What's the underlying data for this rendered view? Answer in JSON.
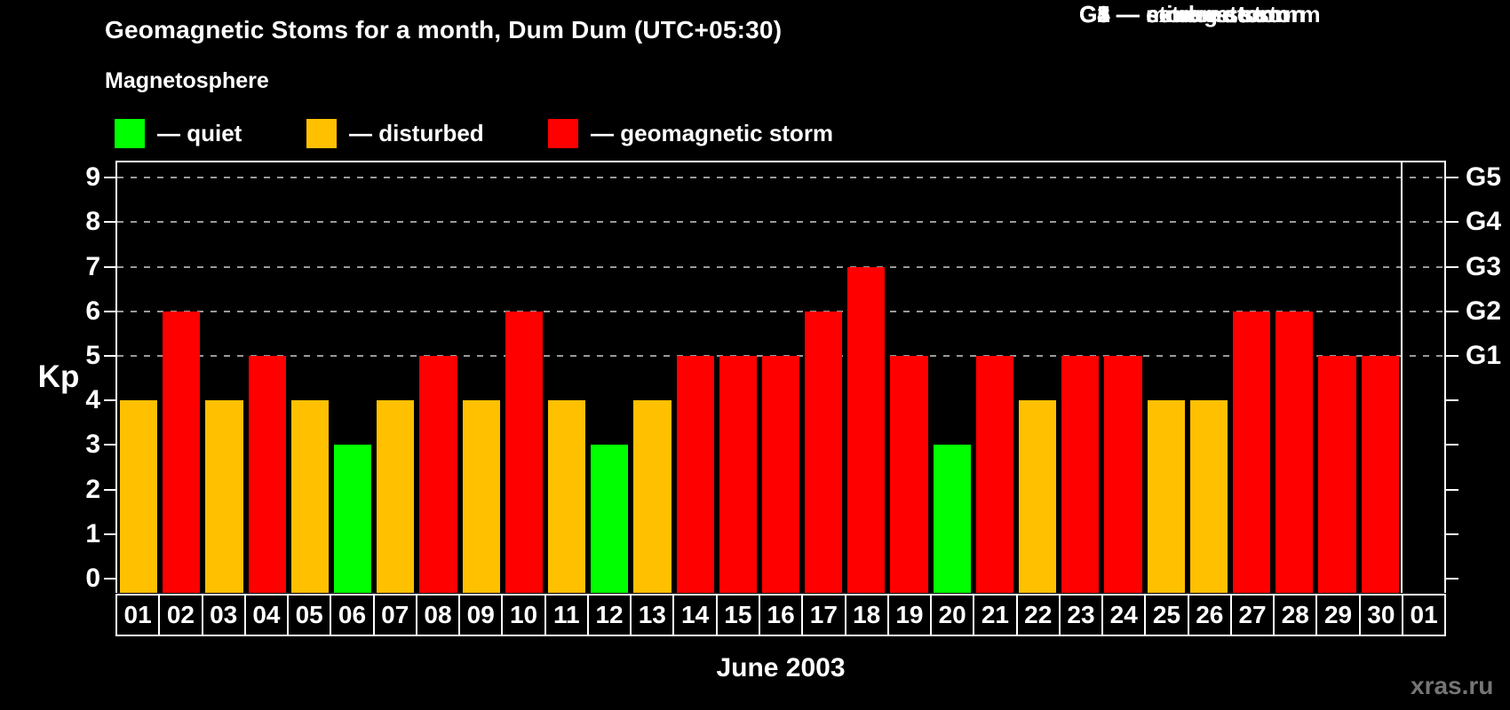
{
  "chart_data": {
    "type": "bar",
    "title": "Geomagnetic Stoms for a month, Dum Dum (UTC+05:30)",
    "subtitle": "Magnetosphere",
    "xlabel": "June 2003",
    "ylabel": "Kp",
    "ylim": [
      0,
      9
    ],
    "grid": "dashed horizontal at Kp 5-9",
    "gridlines_at": [
      5,
      6,
      7,
      8,
      9
    ],
    "left_ticks": [
      0,
      1,
      2,
      3,
      4,
      5,
      6,
      7,
      8,
      9
    ],
    "right_axis": {
      "labels": [
        "G1",
        "G2",
        "G3",
        "G4",
        "G5"
      ],
      "kp": [
        5,
        6,
        7,
        8,
        9
      ]
    },
    "month_boundary_index": 30,
    "days": [
      {
        "day": "01",
        "kp": 4,
        "state": "disturbed"
      },
      {
        "day": "02",
        "kp": 6,
        "state": "storm"
      },
      {
        "day": "03",
        "kp": 4,
        "state": "disturbed"
      },
      {
        "day": "04",
        "kp": 5,
        "state": "storm"
      },
      {
        "day": "05",
        "kp": 4,
        "state": "disturbed"
      },
      {
        "day": "06",
        "kp": 3,
        "state": "quiet"
      },
      {
        "day": "07",
        "kp": 4,
        "state": "disturbed"
      },
      {
        "day": "08",
        "kp": 5,
        "state": "storm"
      },
      {
        "day": "09",
        "kp": 4,
        "state": "disturbed"
      },
      {
        "day": "10",
        "kp": 6,
        "state": "storm"
      },
      {
        "day": "11",
        "kp": 4,
        "state": "disturbed"
      },
      {
        "day": "12",
        "kp": 3,
        "state": "quiet"
      },
      {
        "day": "13",
        "kp": 4,
        "state": "disturbed"
      },
      {
        "day": "14",
        "kp": 5,
        "state": "storm"
      },
      {
        "day": "15",
        "kp": 5,
        "state": "storm"
      },
      {
        "day": "16",
        "kp": 5,
        "state": "storm"
      },
      {
        "day": "17",
        "kp": 6,
        "state": "storm"
      },
      {
        "day": "18",
        "kp": 7,
        "state": "storm"
      },
      {
        "day": "19",
        "kp": 5,
        "state": "storm"
      },
      {
        "day": "20",
        "kp": 3,
        "state": "quiet"
      },
      {
        "day": "21",
        "kp": 5,
        "state": "storm"
      },
      {
        "day": "22",
        "kp": 4,
        "state": "disturbed"
      },
      {
        "day": "23",
        "kp": 5,
        "state": "storm"
      },
      {
        "day": "24",
        "kp": 5,
        "state": "storm"
      },
      {
        "day": "25",
        "kp": 4,
        "state": "disturbed"
      },
      {
        "day": "26",
        "kp": 4,
        "state": "disturbed"
      },
      {
        "day": "27",
        "kp": 6,
        "state": "storm"
      },
      {
        "day": "28",
        "kp": 6,
        "state": "storm"
      },
      {
        "day": "29",
        "kp": 5,
        "state": "storm"
      },
      {
        "day": "30",
        "kp": 5,
        "state": "storm"
      },
      {
        "day": "01",
        "kp": null,
        "state": "none"
      }
    ]
  },
  "legend": {
    "items": [
      {
        "state": "quiet",
        "label": "— quiet"
      },
      {
        "state": "disturbed",
        "label": "— disturbed"
      },
      {
        "state": "storm",
        "label": "— geomagnetic storm"
      }
    ]
  },
  "g_scale": [
    "G1 — minor storm",
    "G2 — moderate storm",
    "G3 — strong storm",
    "G4 — severe storm",
    "G5 — extreme storm"
  ],
  "watermark": "xras.ru",
  "colors": {
    "quiet": "#00ff00",
    "disturbed": "#ffc000",
    "storm": "#ff0000",
    "axis": "#ffffff",
    "grid": "#9a9a9a",
    "background": "#000000",
    "watermark": "#757575"
  }
}
